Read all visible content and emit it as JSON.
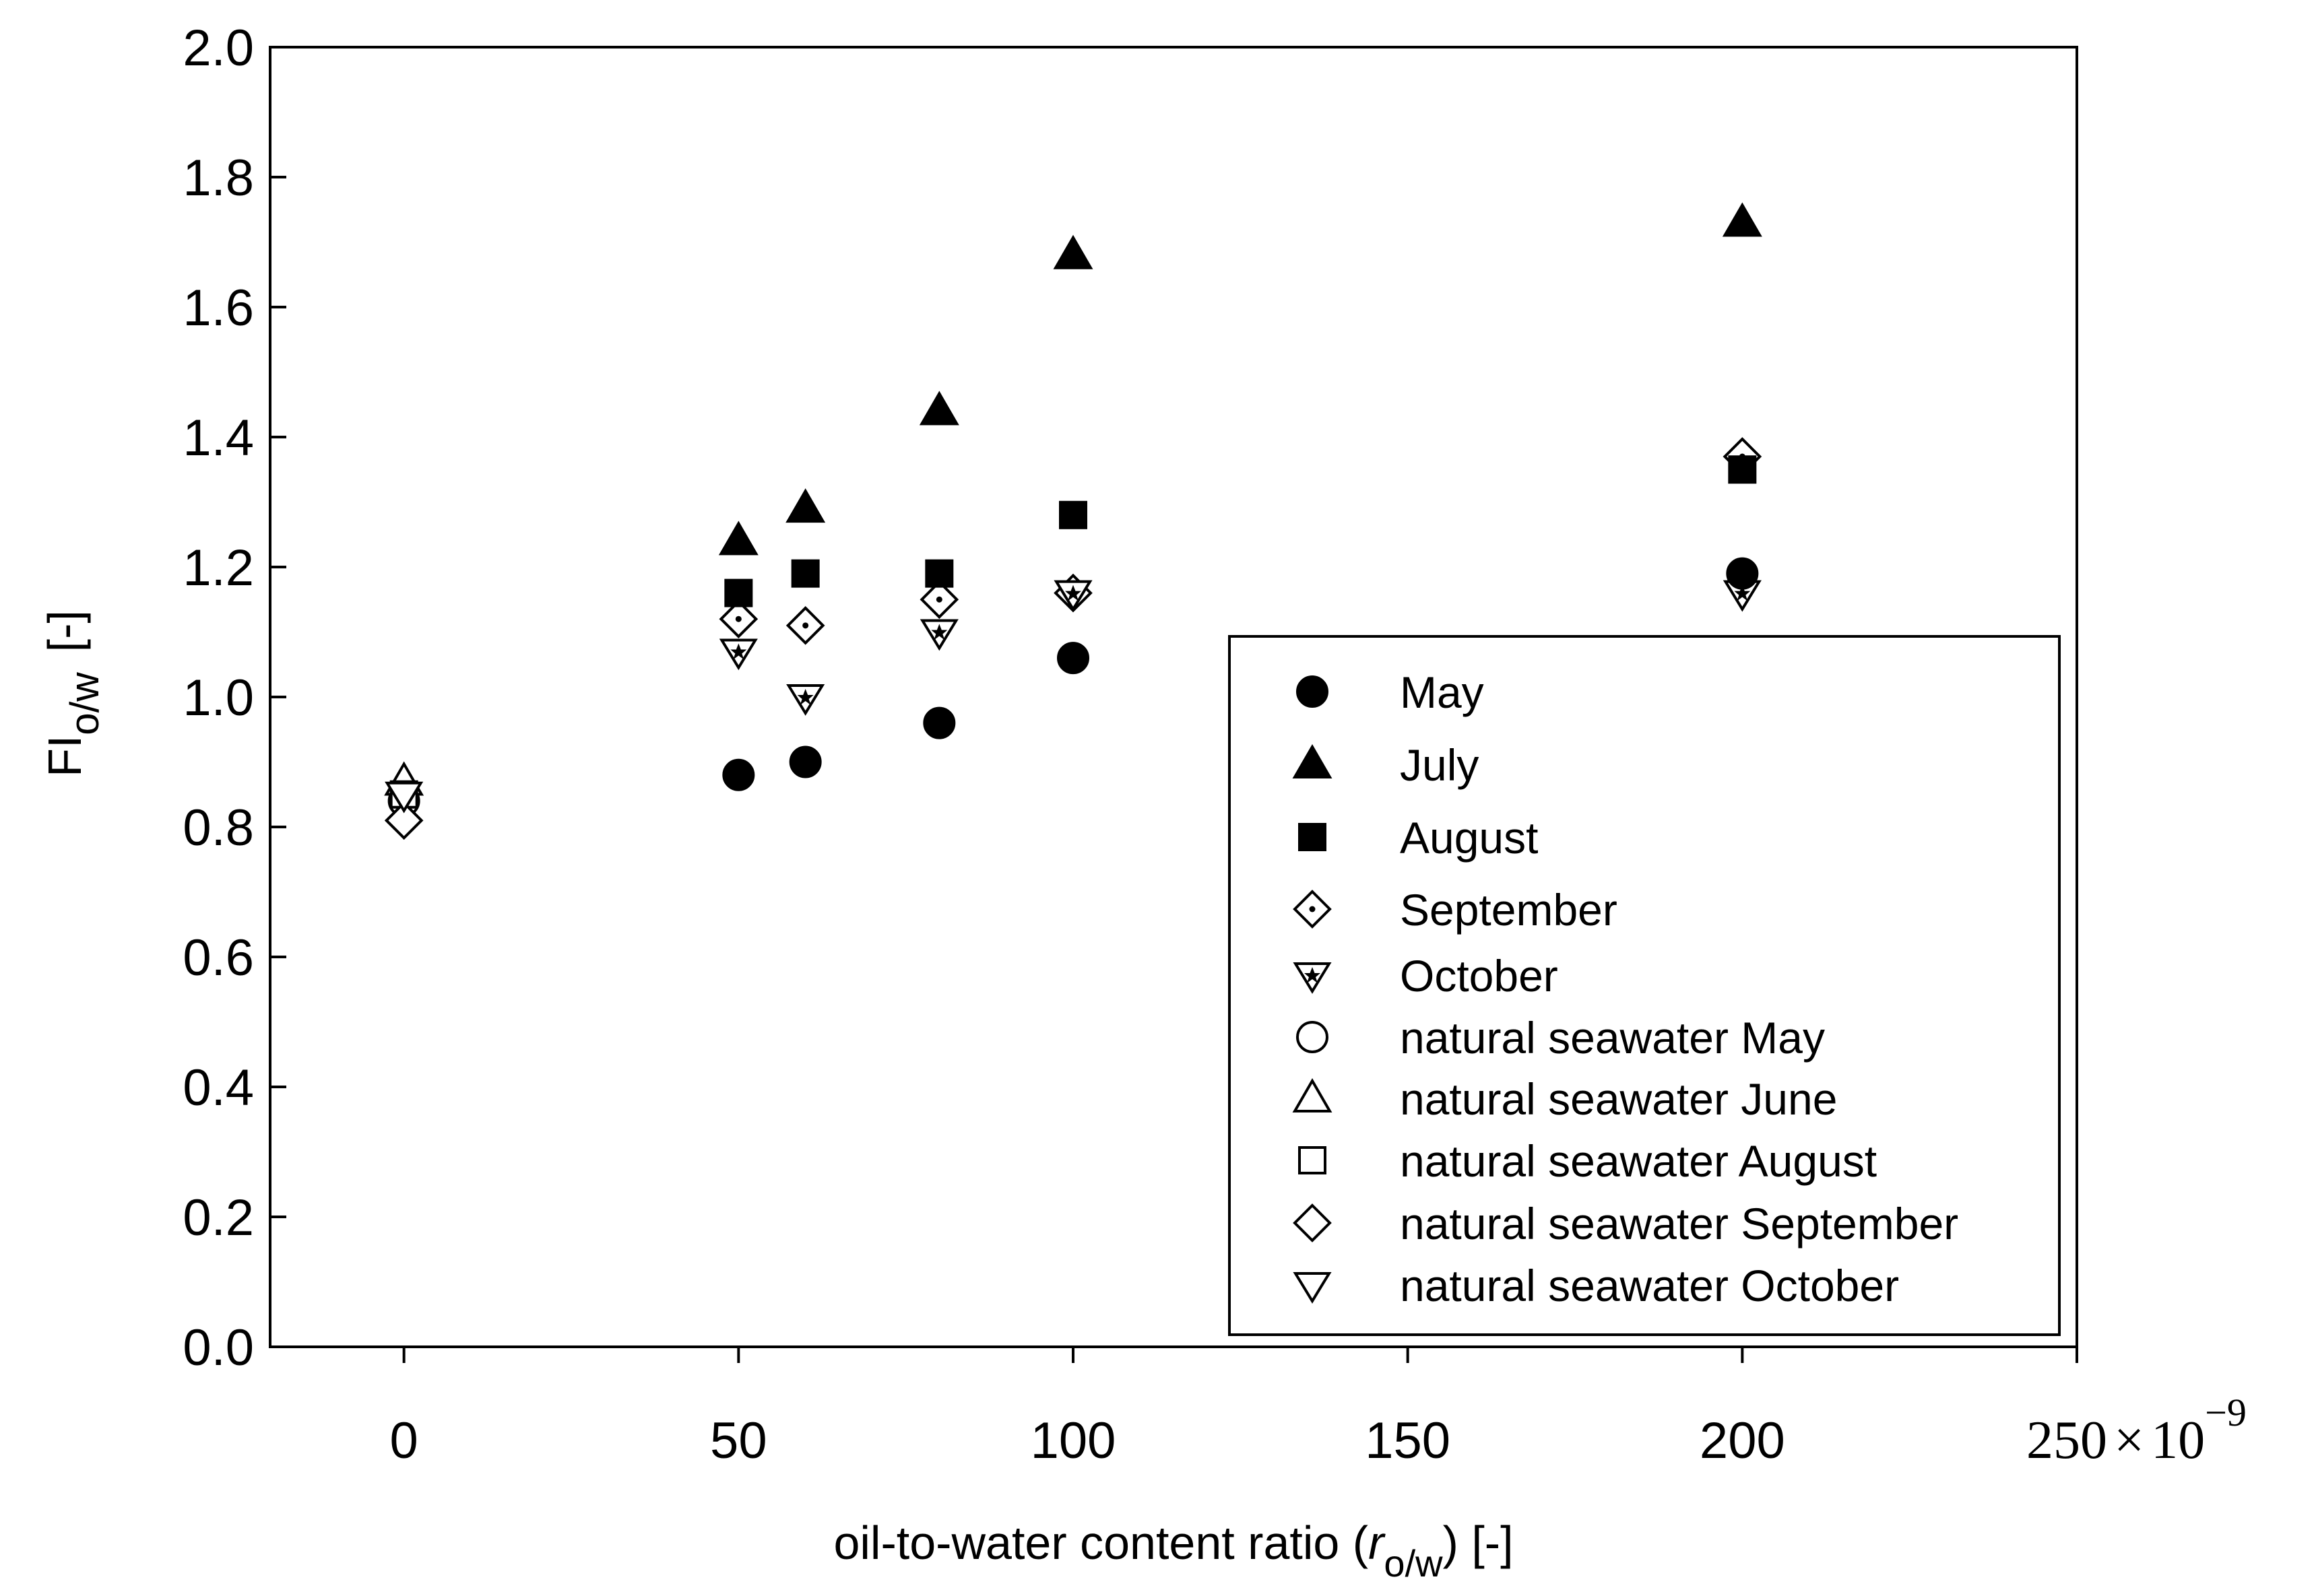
{
  "chart_data": {
    "type": "scatter",
    "title": "",
    "xlabel": {
      "prefix": "oil-to-water content ratio (",
      "italic": "r",
      "subscript": "o/w",
      "suffix": ") [-]"
    },
    "ylabel": {
      "main": "FI",
      "subscript": "o/w",
      "suffix": "[-]"
    },
    "xlim": [
      -20,
      250
    ],
    "ylim": [
      0,
      2.0
    ],
    "x_ticks": [
      "0",
      "50",
      "100",
      "150",
      "200"
    ],
    "x_scale_label": {
      "base": "250",
      "mult": "×",
      "ten": "10",
      "exp": "−9"
    },
    "y_ticks": [
      "0.0",
      "0.2",
      "0.4",
      "0.6",
      "0.8",
      "1.0",
      "1.2",
      "1.4",
      "1.6",
      "1.8",
      "2.0"
    ],
    "legend_position": "bottom-right",
    "series": [
      {
        "name": "May",
        "marker": "circle-filled",
        "x": [
          50,
          60,
          80,
          100,
          200
        ],
        "y": [
          0.88,
          0.9,
          0.96,
          1.06,
          1.19
        ]
      },
      {
        "name": "July",
        "marker": "triangle-up-filled",
        "x": [
          50,
          60,
          80,
          100,
          200
        ],
        "y": [
          1.24,
          1.29,
          1.44,
          1.68,
          1.73
        ]
      },
      {
        "name": "August",
        "marker": "square-filled",
        "x": [
          50,
          60,
          80,
          100,
          200
        ],
        "y": [
          1.16,
          1.19,
          1.19,
          1.28,
          1.35
        ]
      },
      {
        "name": "September",
        "marker": "diamond-dot",
        "x": [
          50,
          60,
          80,
          100,
          200
        ],
        "y": [
          1.12,
          1.11,
          1.15,
          1.16,
          1.37
        ]
      },
      {
        "name": "October",
        "marker": "triangle-down-star",
        "x": [
          50,
          60,
          80,
          100,
          200
        ],
        "y": [
          1.07,
          1.0,
          1.1,
          1.16,
          1.16
        ]
      },
      {
        "name": "natural seawater May",
        "marker": "circle-open",
        "x": [
          0
        ],
        "y": [
          0.84
        ]
      },
      {
        "name": "natural seawater June",
        "marker": "triangle-up-open",
        "x": [
          0
        ],
        "y": [
          0.87
        ]
      },
      {
        "name": "natural seawater August",
        "marker": "square-open",
        "x": [
          0
        ],
        "y": [
          0.85
        ]
      },
      {
        "name": "natural seawater September",
        "marker": "diamond-open",
        "x": [
          0
        ],
        "y": [
          0.81
        ]
      },
      {
        "name": "natural seawater October",
        "marker": "triangle-down-open",
        "x": [
          0
        ],
        "y": [
          0.85
        ]
      }
    ]
  }
}
